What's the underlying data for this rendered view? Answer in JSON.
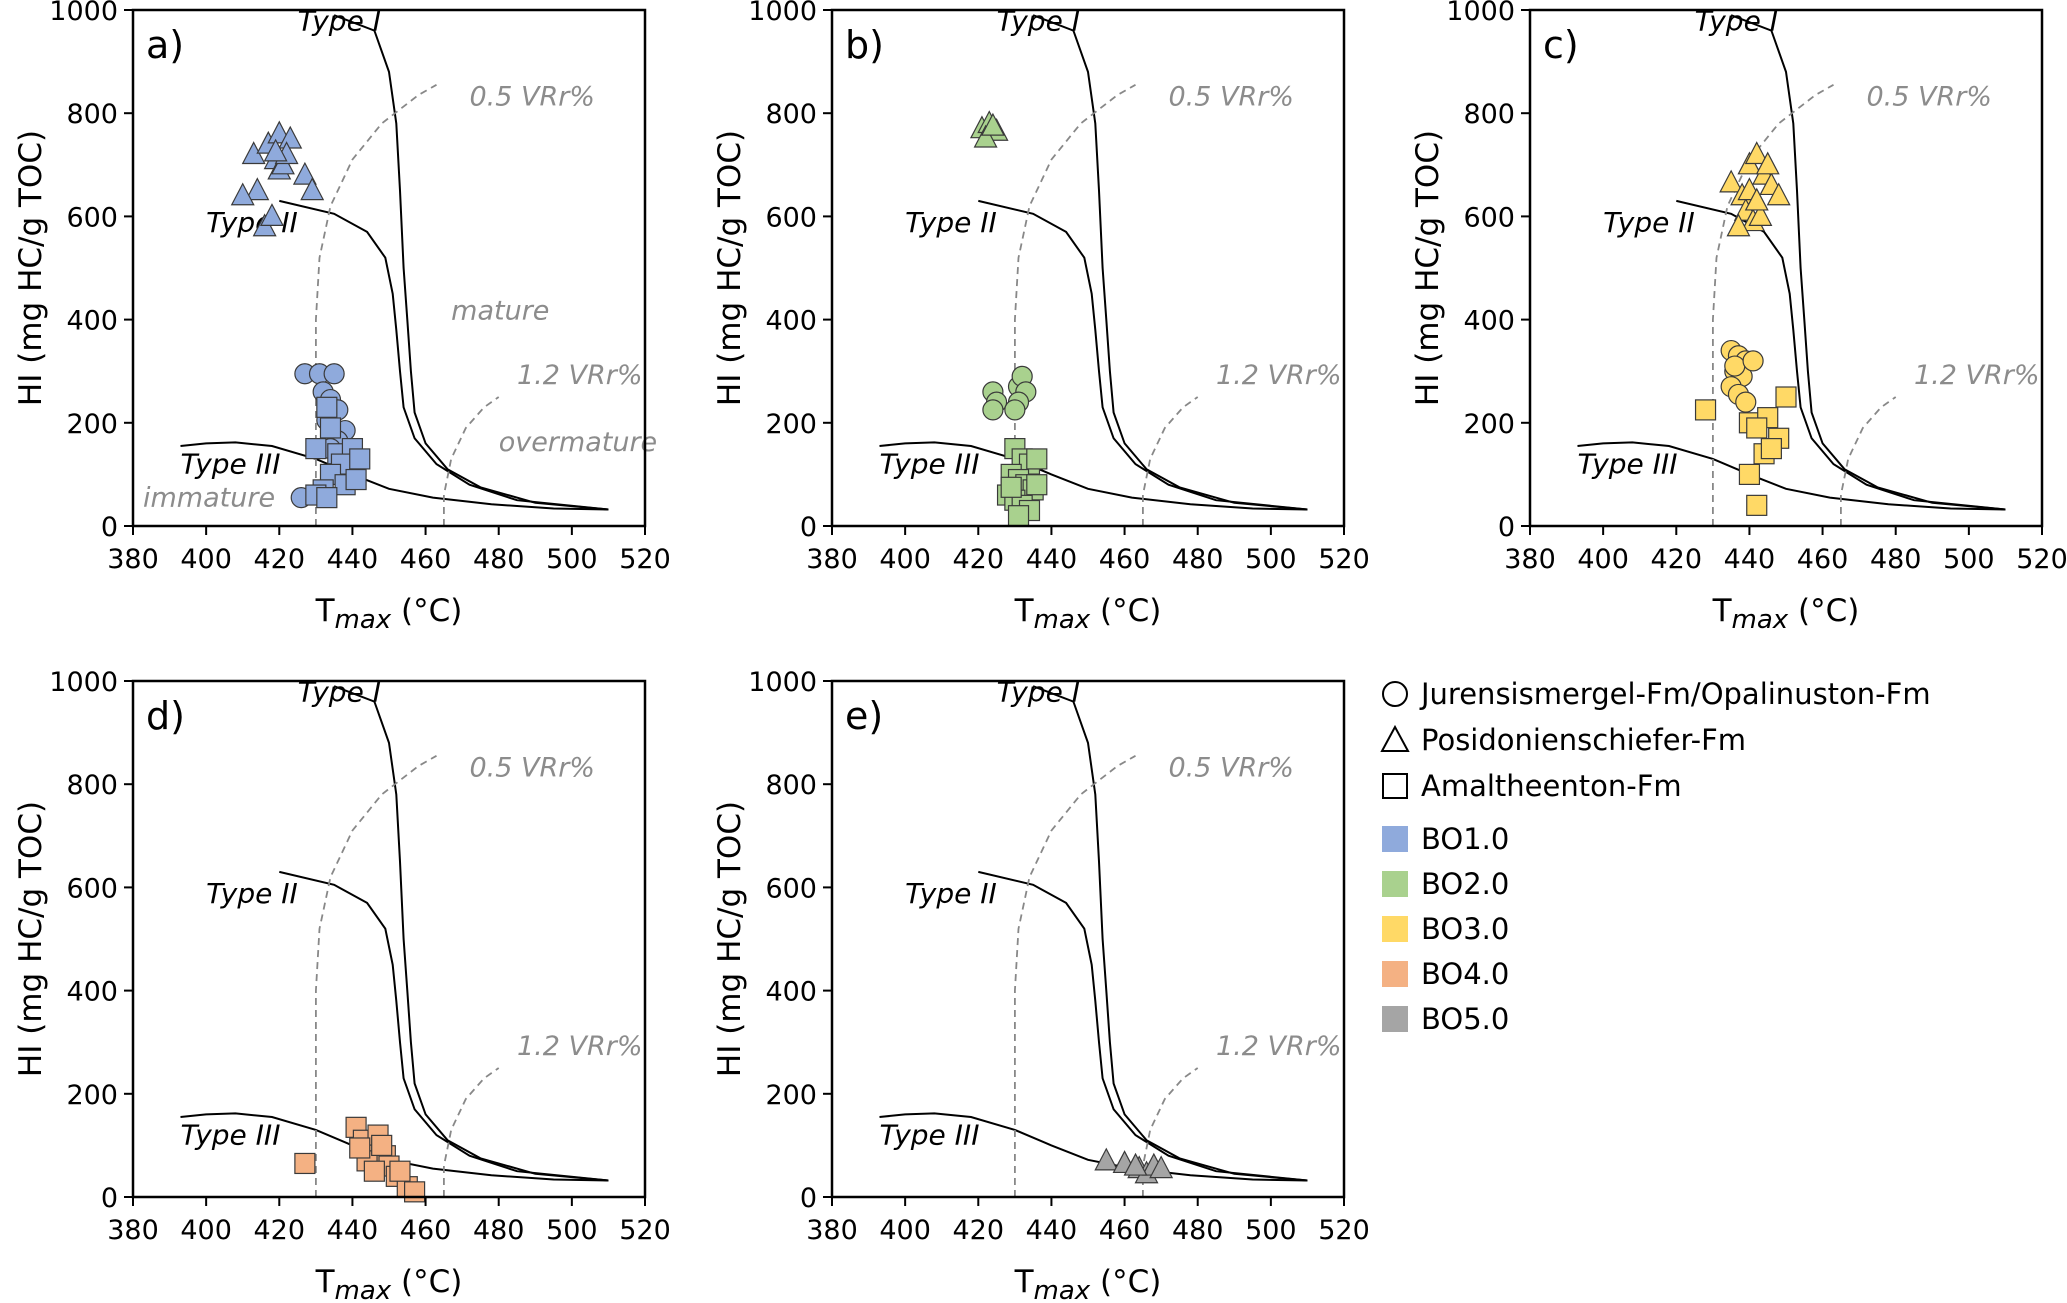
{
  "chart_data": {
    "type": "scatter",
    "x_axis": {
      "label": "T",
      "label_sub": "max",
      "label_suffix": " (°C)",
      "range": [
        380,
        520
      ],
      "ticks": [
        380,
        400,
        420,
        440,
        460,
        480,
        500,
        520
      ]
    },
    "y_axis": {
      "label": "HI (mg HC/g TOC)",
      "range": [
        0,
        1000
      ],
      "ticks": [
        0,
        200,
        400,
        600,
        800,
        1000
      ]
    },
    "kerogen_labels": {
      "type1": "Type I",
      "type2": "Type II",
      "type3": "Type III"
    },
    "maturity_labels": {
      "vr05": "0.5 VRr%",
      "vr12": "1.2 VRr%",
      "immature": "immature",
      "mature": "mature",
      "overmature": "overmature"
    },
    "reference_curves": {
      "type1": [
        [
          435,
          990
        ],
        [
          446,
          960
        ],
        [
          450,
          880
        ],
        [
          452,
          780
        ],
        [
          453,
          650
        ],
        [
          454,
          500
        ],
        [
          455,
          400
        ],
        [
          456,
          300
        ],
        [
          457,
          220
        ],
        [
          460,
          160
        ],
        [
          466,
          110
        ],
        [
          475,
          75
        ],
        [
          490,
          45
        ],
        [
          510,
          32
        ]
      ],
      "type2": [
        [
          420,
          630
        ],
        [
          435,
          605
        ],
        [
          444,
          570
        ],
        [
          449,
          520
        ],
        [
          451,
          450
        ],
        [
          452,
          380
        ],
        [
          453,
          300
        ],
        [
          454,
          230
        ],
        [
          457,
          170
        ],
        [
          463,
          120
        ],
        [
          472,
          80
        ],
        [
          485,
          50
        ],
        [
          510,
          32
        ]
      ],
      "type3": [
        [
          393,
          155
        ],
        [
          400,
          160
        ],
        [
          408,
          162
        ],
        [
          418,
          155
        ],
        [
          430,
          130
        ],
        [
          440,
          100
        ],
        [
          450,
          72
        ],
        [
          462,
          55
        ],
        [
          478,
          42
        ],
        [
          495,
          34
        ],
        [
          510,
          32
        ]
      ],
      "vr05": [
        [
          430,
          0
        ],
        [
          430,
          200
        ],
        [
          430,
          400
        ],
        [
          431,
          520
        ],
        [
          434,
          620
        ],
        [
          440,
          710
        ],
        [
          448,
          780
        ],
        [
          458,
          835
        ],
        [
          463,
          855
        ]
      ],
      "vr12": [
        [
          465,
          0
        ],
        [
          465,
          60
        ],
        [
          467,
          130
        ],
        [
          471,
          190
        ],
        [
          476,
          230
        ],
        [
          480,
          250
        ]
      ]
    },
    "panels": [
      {
        "label": "a)",
        "group": "BO1.0",
        "color": "#8faadc",
        "show_maturity_zones": true,
        "points": {
          "triangle": [
            [
              413,
              720
            ],
            [
              414,
              650
            ],
            [
              417,
              740
            ],
            [
              420,
              760
            ],
            [
              423,
              750
            ],
            [
              419,
              710
            ],
            [
              420,
              690
            ],
            [
              421,
              700
            ],
            [
              422,
              720
            ],
            [
              427,
              680
            ],
            [
              429,
              650
            ],
            [
              410,
              640
            ],
            [
              416,
              580
            ],
            [
              418,
              600
            ],
            [
              419,
              725
            ]
          ],
          "circle": [
            [
              427,
              295
            ],
            [
              431,
              295
            ],
            [
              435,
              295
            ],
            [
              432,
              260
            ],
            [
              434,
              245
            ],
            [
              436,
              225
            ],
            [
              433,
              205
            ],
            [
              438,
              185
            ],
            [
              436,
              165
            ],
            [
              434,
              150
            ],
            [
              426,
              55
            ]
          ],
          "square": [
            [
              433,
              230
            ],
            [
              434,
              190
            ],
            [
              430,
              150
            ],
            [
              436,
              140
            ],
            [
              440,
              150
            ],
            [
              437,
              120
            ],
            [
              442,
              130
            ],
            [
              434,
              100
            ],
            [
              438,
              80
            ],
            [
              432,
              70
            ],
            [
              441,
              90
            ],
            [
              430,
              60
            ],
            [
              433,
              55
            ]
          ]
        }
      },
      {
        "label": "b)",
        "group": "BO2.0",
        "color": "#a9d18e",
        "show_maturity_zones": false,
        "points": {
          "triangle": [
            [
              421,
              770
            ],
            [
              423,
              780
            ],
            [
              425,
              765
            ],
            [
              422,
              752
            ],
            [
              424,
              775
            ]
          ],
          "circle": [
            [
              424,
              260
            ],
            [
              425,
              240
            ],
            [
              424,
              225
            ],
            [
              431,
              270
            ],
            [
              432,
              290
            ],
            [
              433,
              260
            ],
            [
              431,
              240
            ],
            [
              430,
              225
            ]
          ],
          "square": [
            [
              430,
              150
            ],
            [
              432,
              130
            ],
            [
              434,
              120
            ],
            [
              436,
              130
            ],
            [
              429,
              100
            ],
            [
              431,
              90
            ],
            [
              433,
              80
            ],
            [
              435,
              70
            ],
            [
              428,
              60
            ],
            [
              430,
              50
            ],
            [
              432,
              40
            ],
            [
              434,
              30
            ],
            [
              431,
              20
            ],
            [
              436,
              80
            ],
            [
              429,
              75
            ]
          ]
        }
      },
      {
        "label": "c)",
        "group": "BO3.0",
        "color": "#ffd966",
        "show_maturity_zones": false,
        "points": {
          "triangle": [
            [
              435,
              665
            ],
            [
              438,
              640
            ],
            [
              440,
              700
            ],
            [
              442,
              720
            ],
            [
              444,
              680
            ],
            [
              446,
              660
            ],
            [
              448,
              640
            ],
            [
              439,
              610
            ],
            [
              441,
              590
            ],
            [
              437,
              580
            ],
            [
              443,
              600
            ],
            [
              445,
              700
            ],
            [
              440,
              650
            ],
            [
              442,
              630
            ]
          ],
          "circle": [
            [
              435,
              340
            ],
            [
              437,
              330
            ],
            [
              439,
              320
            ],
            [
              436,
              300
            ],
            [
              438,
              290
            ],
            [
              435,
              270
            ],
            [
              437,
              255
            ],
            [
              439,
              240
            ],
            [
              436,
              310
            ],
            [
              441,
              320
            ]
          ],
          "square": [
            [
              428,
              225
            ],
            [
              440,
              100
            ],
            [
              442,
              40
            ],
            [
              440,
              200
            ],
            [
              445,
              210
            ],
            [
              448,
              170
            ],
            [
              450,
              250
            ],
            [
              444,
              140
            ],
            [
              446,
              150
            ],
            [
              442,
              190
            ]
          ]
        }
      },
      {
        "label": "d)",
        "group": "BO4.0",
        "color": "#f4b183",
        "show_maturity_zones": false,
        "points": {
          "square": [
            [
              427,
              65
            ],
            [
              441,
              135
            ],
            [
              443,
              110
            ],
            [
              445,
              90
            ],
            [
              447,
              120
            ],
            [
              449,
              80
            ],
            [
              450,
              60
            ],
            [
              452,
              40
            ],
            [
              455,
              20
            ],
            [
              457,
              10
            ],
            [
              444,
              70
            ],
            [
              446,
              50
            ],
            [
              448,
              100
            ],
            [
              442,
              95
            ],
            [
              453,
              50
            ]
          ]
        }
      },
      {
        "label": "e)",
        "group": "BO5.0",
        "color": "#a5a5a5",
        "show_maturity_zones": false,
        "points": {
          "triangle": [
            [
              455,
              70
            ],
            [
              460,
              65
            ],
            [
              464,
              55
            ],
            [
              466,
              45
            ],
            [
              468,
              60
            ],
            [
              470,
              55
            ],
            [
              463,
              60
            ]
          ]
        }
      }
    ],
    "legend": {
      "shapes": [
        {
          "marker": "circle",
          "label": "Jurensismergel-Fm/Opalinuston-Fm"
        },
        {
          "marker": "triangle",
          "label": "Posidonienschiefer-Fm"
        },
        {
          "marker": "square",
          "label": "Amaltheenton-Fm"
        }
      ],
      "groups": [
        {
          "label": "BO1.0",
          "color": "#8faadc"
        },
        {
          "label": "BO2.0",
          "color": "#a9d18e"
        },
        {
          "label": "BO3.0",
          "color": "#ffd966"
        },
        {
          "label": "BO4.0",
          "color": "#f4b183"
        },
        {
          "label": "BO5.0",
          "color": "#a5a5a5"
        }
      ]
    }
  }
}
